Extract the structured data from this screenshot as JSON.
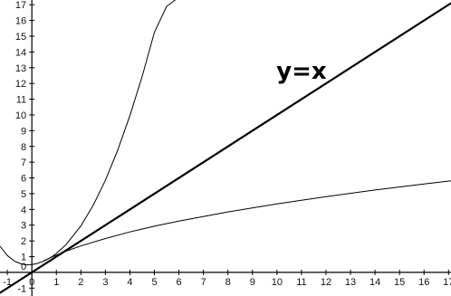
{
  "chart_data": {
    "type": "line",
    "xlim": [
      -1.3,
      17.1
    ],
    "ylim": [
      -1.5,
      17.3
    ],
    "grid": false,
    "x_ticks": [
      -1,
      0,
      1,
      2,
      3,
      4,
      5,
      6,
      7,
      8,
      9,
      10,
      11,
      12,
      13,
      14,
      15,
      16,
      17
    ],
    "x_tick_labels": [
      "-1",
      "0",
      "1",
      "2",
      "3",
      "4",
      "5",
      "6",
      "7",
      "8",
      "9",
      "10",
      "11",
      "12",
      "13",
      "14",
      "15",
      "16",
      "17"
    ],
    "y_ticks": [
      -1,
      1,
      2,
      3,
      4,
      5,
      6,
      7,
      8,
      9,
      10,
      11,
      12,
      13,
      14,
      15,
      16,
      17
    ],
    "y_tick_labels": [
      "-1",
      "1",
      "2",
      "3",
      "4",
      "5",
      "6",
      "7",
      "8",
      "9",
      "10",
      "11",
      "12",
      "13",
      "14",
      "15",
      "16",
      "17"
    ],
    "zero_label": "0",
    "annotations": [
      {
        "text": "y=x",
        "x": 11,
        "y": 12.3
      }
    ],
    "series": [
      {
        "x": [
          -1.3,
          -1.0,
          -0.7,
          -0.4,
          -0.2,
          0.0,
          0.2,
          0.4,
          0.6,
          0.8,
          1.0,
          1.4,
          2.0,
          2.5,
          3.0,
          3.5,
          4.0,
          4.5,
          5.0,
          5.5,
          5.85
        ],
        "y": [
          1.66,
          1.07,
          0.71,
          0.52,
          0.48,
          0.5,
          0.56,
          0.66,
          0.8,
          0.98,
          1.2,
          1.77,
          2.95,
          4.25,
          5.85,
          7.75,
          9.95,
          12.45,
          15.25,
          16.9,
          17.3
        ]
      },
      {
        "x": [
          -1.3,
          17.1
        ],
        "y": [
          -1.3,
          17.1
        ],
        "stroke_width": 2.2
      },
      {
        "x": [
          0.5,
          0.8,
          1.0,
          1.4,
          2.0,
          3.0,
          4.0,
          5.0,
          6.0,
          8.0,
          10.0,
          12.0,
          14.0,
          16.0,
          17.1
        ],
        "y": [
          0.75,
          0.96,
          1.1,
          1.35,
          1.68,
          2.15,
          2.57,
          2.93,
          3.26,
          3.84,
          4.35,
          4.81,
          5.23,
          5.62,
          5.82
        ]
      }
    ]
  }
}
